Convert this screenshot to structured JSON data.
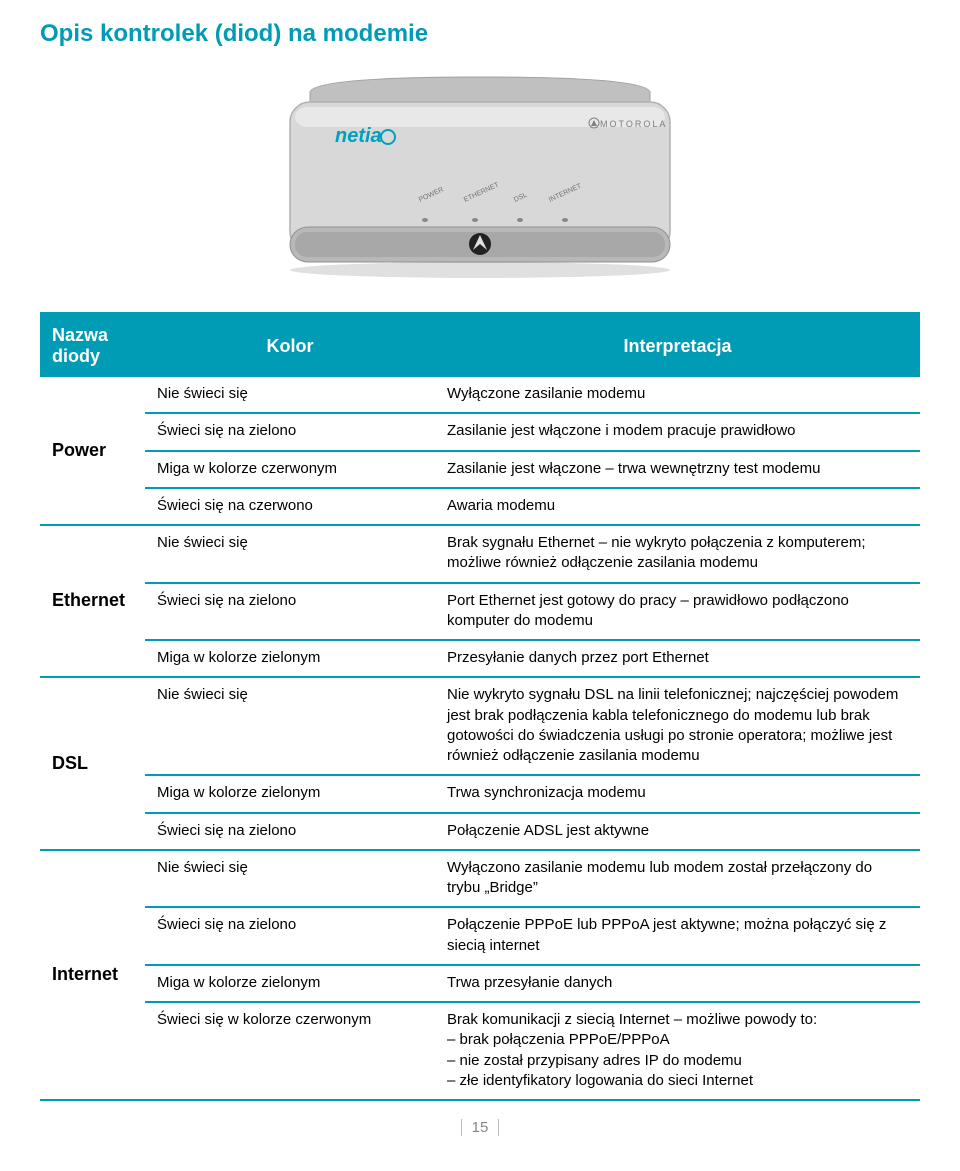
{
  "page_title": "Opis kontrolek (diod) na modemie",
  "page_number": "15",
  "modem_image": {
    "body_fill": "#d8d8d8",
    "body_stroke": "#b0b0b0",
    "logo_text": "netia",
    "logo_color": "#00a0c0",
    "brand_text": "MOTOROLA",
    "brand_color": "#808080",
    "led_labels": [
      "POWER",
      "ETHERNET",
      "DSL",
      "INTERNET"
    ],
    "bat_logo_fill": "#222222"
  },
  "table": {
    "headers": [
      "Nazwa diody",
      "Kolor",
      "Interpretacja"
    ],
    "header_bg": "#009bb5",
    "header_fg": "#ffffff",
    "border_color": "#009bb5",
    "groups": [
      {
        "name": "Power",
        "rows": [
          {
            "kolor": "Nie świeci się",
            "interp": "Wyłączone zasilanie modemu"
          },
          {
            "kolor": "Świeci się na zielono",
            "interp": "Zasilanie jest włączone i modem pracuje prawidłowo"
          },
          {
            "kolor": "Miga w kolorze czerwonym",
            "interp": "Zasilanie jest włączone – trwa wewnętrzny test modemu"
          },
          {
            "kolor": "Świeci się na czerwono",
            "interp": "Awaria modemu"
          }
        ]
      },
      {
        "name": "Ethernet",
        "rows": [
          {
            "kolor": "Nie świeci się",
            "interp": "Brak sygnału Ethernet – nie wykryto połączenia z komputerem; możliwe również odłączenie zasilania modemu"
          },
          {
            "kolor": "Świeci się na zielono",
            "interp": "Port Ethernet jest gotowy do pracy – prawidłowo podłączono komputer do modemu"
          },
          {
            "kolor": "Miga w kolorze zielonym",
            "interp": "Przesyłanie danych przez port Ethernet"
          }
        ]
      },
      {
        "name": "DSL",
        "rows": [
          {
            "kolor": "Nie świeci się",
            "interp": "Nie wykryto sygnału DSL na linii telefonicznej; najczęściej powodem jest brak podłączenia kabla telefonicznego do modemu lub brak gotowości do świadczenia usługi po stronie operatora; możliwe jest również odłączenie zasilania modemu"
          },
          {
            "kolor": "Miga w kolorze zielonym",
            "interp": "Trwa synchronizacja modemu"
          },
          {
            "kolor": "Świeci się na zielono",
            "interp": "Połączenie ADSL jest aktywne"
          }
        ]
      },
      {
        "name": "Internet",
        "rows": [
          {
            "kolor": "Nie świeci się",
            "interp": "Wyłączono zasilanie modemu lub modem został przełączony do trybu „Bridge”"
          },
          {
            "kolor": "Świeci się na zielono",
            "interp": "Połączenie PPPoE lub PPPoA jest aktywne; można połączyć się z siecią internet"
          },
          {
            "kolor": "Miga w kolorze zielonym",
            "interp": "Trwa przesyłanie danych"
          },
          {
            "kolor": "Świeci się w kolorze czerwonym",
            "interp": "Brak komunikacji z siecią Internet – możliwe powody to:\n– brak połączenia PPPoE/PPPoA\n– nie został przypisany adres IP do modemu\n– złe identyfikatory logowania do sieci Internet"
          }
        ]
      }
    ]
  }
}
